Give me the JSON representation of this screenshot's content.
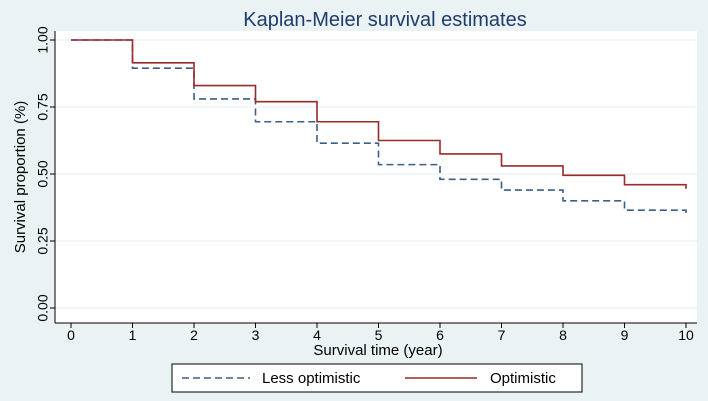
{
  "chart_data": {
    "type": "line",
    "step": true,
    "title": "Kaplan-Meier survival estimates",
    "xlabel": "Survival time (year)",
    "ylabel": "Survival proportion (%)",
    "xlim": [
      0,
      10
    ],
    "ylim": [
      0,
      1
    ],
    "x_ticks": [
      "0",
      "1",
      "2",
      "3",
      "4",
      "5",
      "6",
      "7",
      "8",
      "9",
      "10"
    ],
    "y_ticks": [
      "0.00",
      "0.25",
      "0.50",
      "0.75",
      "1.00"
    ],
    "grid": true,
    "legend_position": "bottom",
    "series": [
      {
        "name": "Less optimistic",
        "color": "#3b5f8a",
        "line_style": "dashed",
        "x": [
          0,
          1,
          2,
          3,
          4,
          5,
          6,
          7,
          8,
          9,
          10
        ],
        "y": [
          1.0,
          0.895,
          0.78,
          0.695,
          0.615,
          0.535,
          0.48,
          0.44,
          0.4,
          0.365,
          0.35
        ]
      },
      {
        "name": "Optimistic",
        "color": "#9b2a2a",
        "line_style": "solid",
        "x": [
          0,
          1,
          2,
          3,
          4,
          5,
          6,
          7,
          8,
          9,
          10
        ],
        "y": [
          1.0,
          0.915,
          0.83,
          0.77,
          0.695,
          0.625,
          0.575,
          0.53,
          0.495,
          0.46,
          0.445
        ]
      }
    ]
  }
}
